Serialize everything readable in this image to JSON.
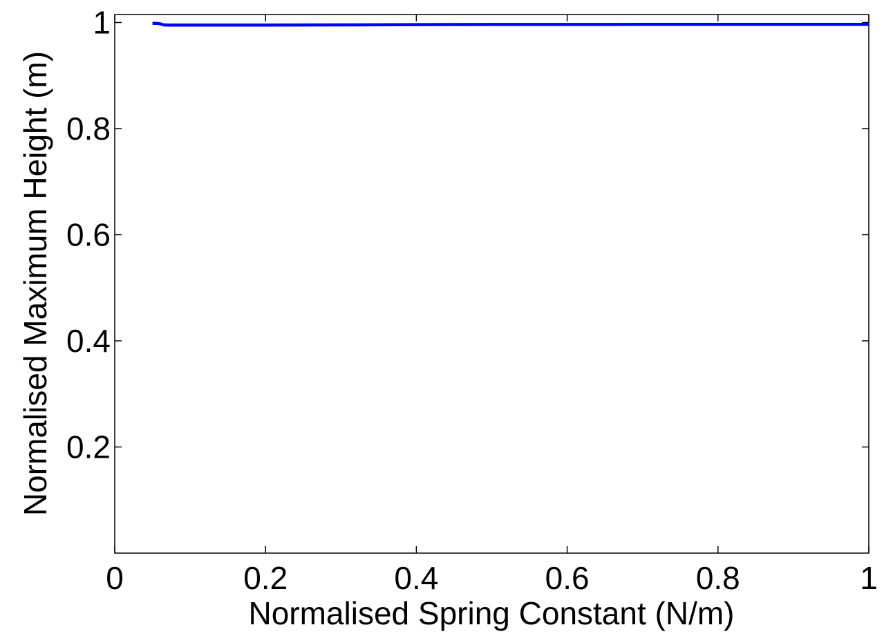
{
  "chart_data": {
    "type": "line",
    "title": "",
    "xlabel": "Normalised Spring Constant (N/m)",
    "ylabel": "Normalised Maximum Height (m)",
    "xlim": [
      0,
      1
    ],
    "ylim": [
      0,
      1.015
    ],
    "xticks": [
      0,
      0.2,
      0.4,
      0.6,
      0.8,
      1
    ],
    "xtick_labels": [
      "0",
      "0.2",
      "0.4",
      "0.6",
      "0.8",
      "1"
    ],
    "yticks": [
      0.2,
      0.4,
      0.6,
      0.8,
      1
    ],
    "ytick_labels": [
      "0.2",
      "0.4",
      "0.6",
      "0.8",
      "1"
    ],
    "grid": false,
    "series": [
      {
        "color": "#0000ff",
        "x": [
          0.05,
          0.055,
          0.06,
          0.065,
          0.07,
          0.1,
          0.2,
          0.3,
          0.4,
          0.5,
          0.6,
          0.7,
          0.8,
          0.9,
          1.0
        ],
        "y": [
          0.9985,
          0.9985,
          0.9975,
          0.9955,
          0.995,
          0.995,
          0.995,
          0.9955,
          0.996,
          0.9962,
          0.9963,
          0.9964,
          0.9964,
          0.9965,
          0.9965
        ]
      }
    ]
  }
}
